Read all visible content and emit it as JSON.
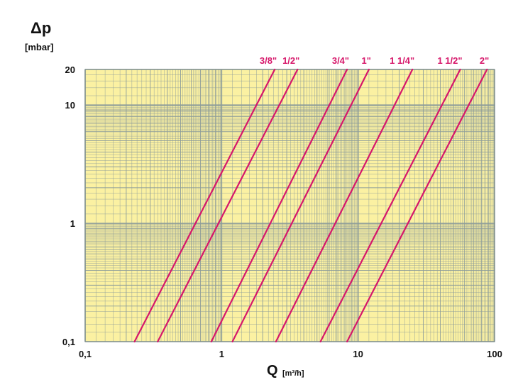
{
  "chart_data": {
    "type": "line",
    "title": "",
    "ylabel": "Δp",
    "ylabel_unit": "[mbar]",
    "xlabel": "Q",
    "xlabel_unit": "[m³/h]",
    "x_scale": "log",
    "y_scale": "log",
    "xlim": [
      0.1,
      100
    ],
    "ylim": [
      0.1,
      20
    ],
    "x_ticks": [
      {
        "value": 0.1,
        "label": "0,1"
      },
      {
        "value": 1,
        "label": "1"
      },
      {
        "value": 10,
        "label": "10"
      },
      {
        "value": 100,
        "label": "100"
      }
    ],
    "y_ticks": [
      {
        "value": 0.1,
        "label": "0,1"
      },
      {
        "value": 1,
        "label": "1"
      },
      {
        "value": 10,
        "label": "10"
      },
      {
        "value": 20,
        "label": "20"
      }
    ],
    "grid": true,
    "background_color": "#fbf1a2",
    "grid_color": "#8c9c9a",
    "line_color": "#d6176a",
    "series": [
      {
        "name": "3/8\"",
        "points": [
          [
            0.23,
            0.1
          ],
          [
            2.45,
            20
          ]
        ]
      },
      {
        "name": "1/2\"",
        "points": [
          [
            0.34,
            0.1
          ],
          [
            3.6,
            20
          ]
        ]
      },
      {
        "name": "3/4\"",
        "points": [
          [
            0.84,
            0.1
          ],
          [
            8.3,
            20
          ]
        ]
      },
      {
        "name": "1\"",
        "points": [
          [
            1.2,
            0.1
          ],
          [
            12,
            20
          ]
        ]
      },
      {
        "name": "1 1/4\"",
        "points": [
          [
            2.5,
            0.1
          ],
          [
            25,
            20
          ]
        ]
      },
      {
        "name": "1 1/2\"",
        "points": [
          [
            5.3,
            0.1
          ],
          [
            56,
            20
          ]
        ]
      },
      {
        "name": "2\"",
        "points": [
          [
            8.3,
            0.1
          ],
          [
            88,
            20
          ]
        ]
      }
    ]
  }
}
